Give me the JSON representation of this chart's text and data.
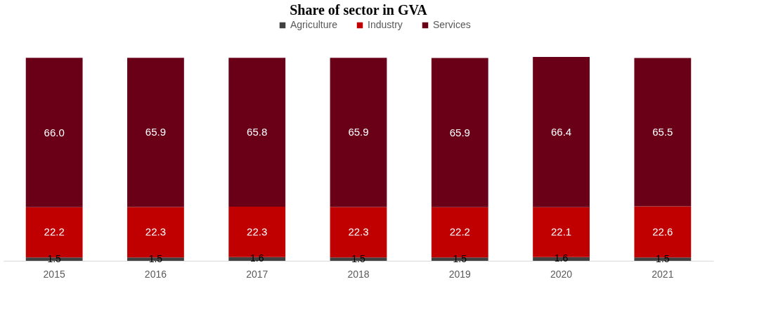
{
  "chart_data": {
    "type": "bar",
    "title": "Share of sector in GVA",
    "categories": [
      "2015",
      "2016",
      "2017",
      "2018",
      "2019",
      "2020",
      "2021"
    ],
    "stacked": true,
    "legend": "top",
    "series": [
      {
        "name": "Agriculture",
        "color": "#404040",
        "values": [
          1.5,
          1.5,
          1.6,
          1.5,
          1.5,
          1.6,
          1.5
        ],
        "value_labels": [
          "1.5",
          "1.5",
          "1.6",
          "1.5",
          "1.5",
          "1.6",
          "1.5"
        ]
      },
      {
        "name": "Industry",
        "color": "#c00000",
        "values": [
          22.2,
          22.3,
          22.3,
          22.3,
          22.2,
          22.1,
          22.6
        ],
        "value_labels": [
          "22.2",
          "22.3",
          "22.3",
          "22.3",
          "22.2",
          "22.1",
          "22.6"
        ]
      },
      {
        "name": "Services",
        "color": "#6a0018",
        "values": [
          66.0,
          65.9,
          65.8,
          65.9,
          65.9,
          66.4,
          65.5
        ],
        "value_labels": [
          "66.0",
          "65.9",
          "65.8",
          "65.9",
          "65.9",
          "66.4",
          "65.5"
        ]
      }
    ]
  }
}
